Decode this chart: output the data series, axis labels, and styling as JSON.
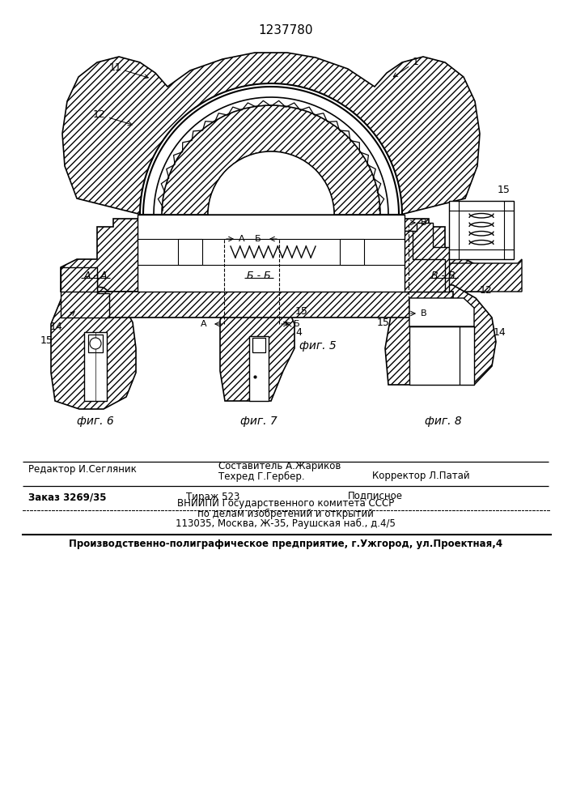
{
  "patent_number": "1237780",
  "background_color": "#ffffff",
  "fig5_caption": "фиг. 5",
  "fig6_caption": "фиг. 6",
  "fig7_caption": "фиг. 7",
  "fig8_caption": "фиг. 8",
  "section_AA": "А - А",
  "section_BB": "Б - Б",
  "section_VV": "В - В",
  "label1": "1",
  "label4": "4",
  "label11": "11",
  "label12": "12",
  "label14": "14",
  "label15": "15",
  "editor_line": "Редактор И.Сегляник",
  "tech_line": "Техред Г.Гербер.",
  "corrector_line": "Корректор Л.Патай",
  "composer_line": "Составитель А.Жариков",
  "order_line": "Заказ 3269/35",
  "circulation_line": "Тираж 523",
  "subscription_line": "Подписное",
  "vnipi_line": "ВНИИПИ Государственного комитета СССР",
  "affairs_line": "по делам изобретений и открытий",
  "address_line": "113035, Москва, Ж-35, Раушская наб., д.4/5",
  "production_line": "Производственно-полиграфическое предприятие, г.Ужгород, ул.Проектная,4"
}
